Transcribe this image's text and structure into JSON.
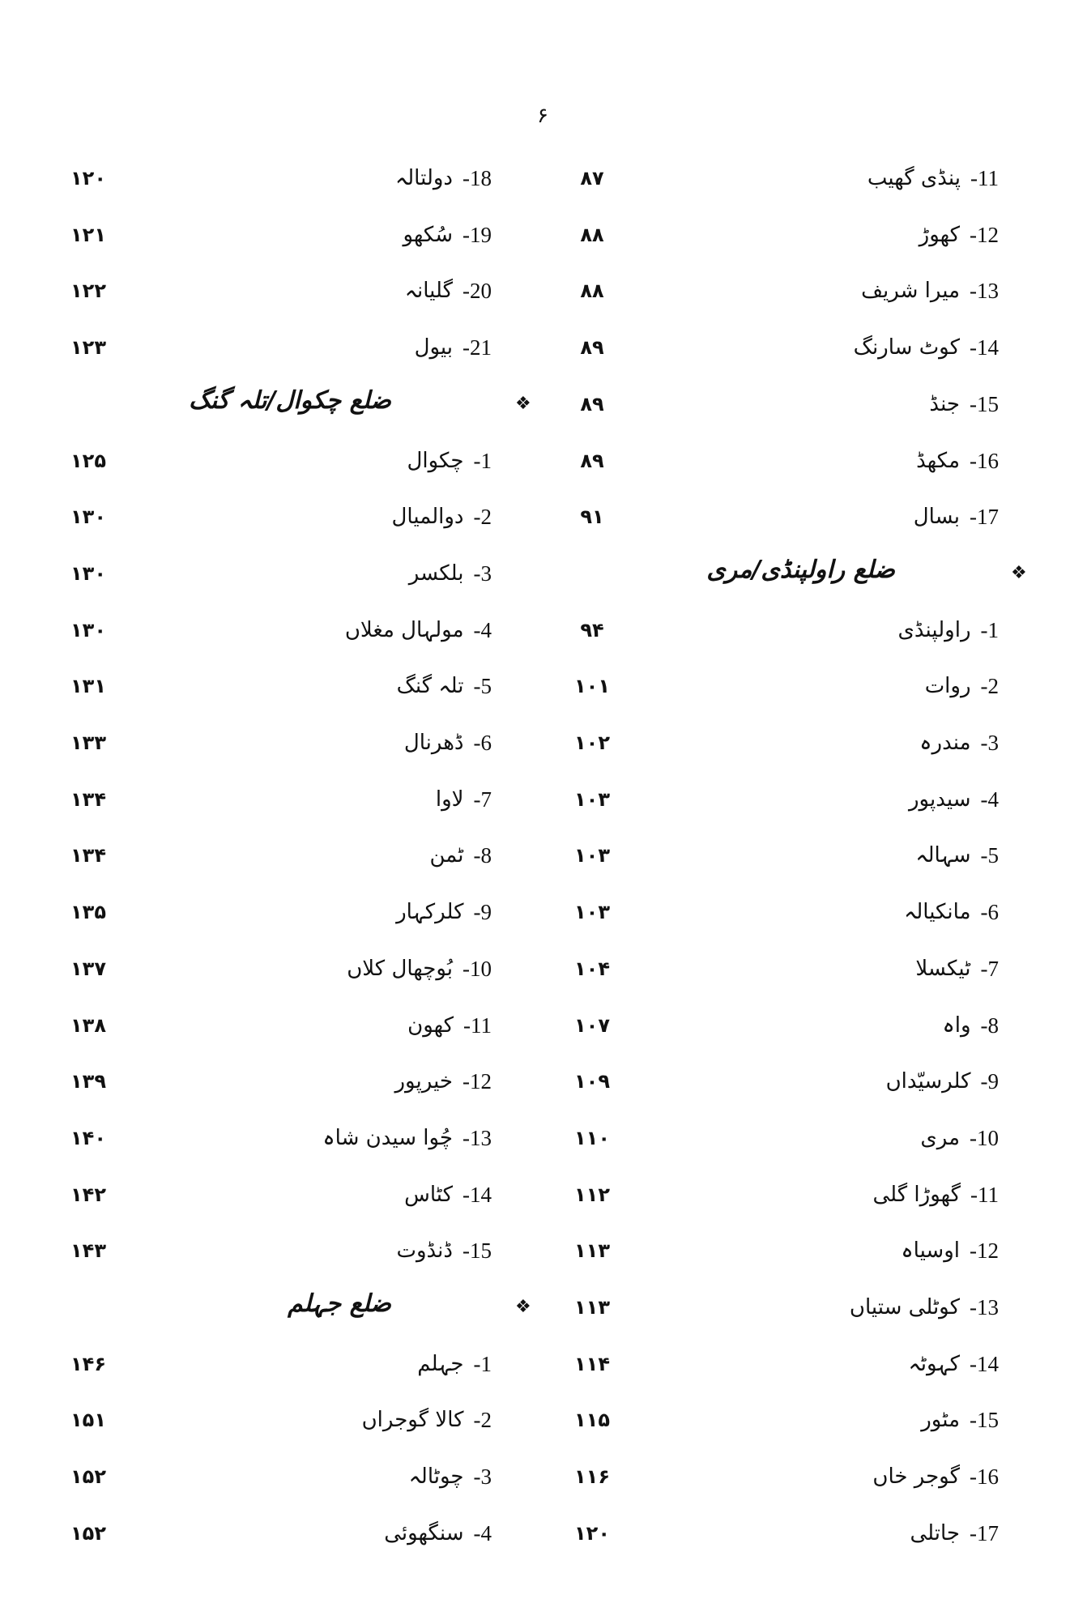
{
  "page_number": "۶",
  "right_column": [
    {
      "type": "item",
      "num": "-11",
      "name": "پنڈی گھیب",
      "page": "۸۷"
    },
    {
      "type": "item",
      "num": "-12",
      "name": "کھوڑ",
      "page": "۸۸"
    },
    {
      "type": "item",
      "num": "-13",
      "name": "میرا شریف",
      "page": "۸۸"
    },
    {
      "type": "item",
      "num": "-14",
      "name": "کوٹ سارنگ",
      "page": "۸۹"
    },
    {
      "type": "item",
      "num": "-15",
      "name": "جنڈ",
      "page": "۸۹"
    },
    {
      "type": "item",
      "num": "-16",
      "name": "مکھڈ",
      "page": "۸۹"
    },
    {
      "type": "item",
      "num": "-17",
      "name": "بسال",
      "page": "۹۱"
    },
    {
      "type": "heading",
      "name": "ضلع راولپنڈی/مری",
      "bullet": "❖"
    },
    {
      "type": "item",
      "num": "-1",
      "name": "راولپنڈی",
      "page": "۹۴"
    },
    {
      "type": "item",
      "num": "-2",
      "name": "روات",
      "page": "۱۰۱"
    },
    {
      "type": "item",
      "num": "-3",
      "name": "مندرہ",
      "page": "۱۰۲"
    },
    {
      "type": "item",
      "num": "-4",
      "name": "سیدپور",
      "page": "۱۰۳"
    },
    {
      "type": "item",
      "num": "-5",
      "name": "سہالہ",
      "page": "۱۰۳"
    },
    {
      "type": "item",
      "num": "-6",
      "name": "مانکیالہ",
      "page": "۱۰۳"
    },
    {
      "type": "item",
      "num": "-7",
      "name": "ٹیکسلا",
      "page": "۱۰۴"
    },
    {
      "type": "item",
      "num": "-8",
      "name": "واہ",
      "page": "۱۰۷"
    },
    {
      "type": "item",
      "num": "-9",
      "name": "کلرسیّداں",
      "page": "۱۰۹"
    },
    {
      "type": "item",
      "num": "-10",
      "name": "مری",
      "page": "۱۱۰"
    },
    {
      "type": "item",
      "num": "-11",
      "name": "گھوڑا گلی",
      "page": "۱۱۲"
    },
    {
      "type": "item",
      "num": "-12",
      "name": "اوسیاہ",
      "page": "۱۱۳"
    },
    {
      "type": "item",
      "num": "-13",
      "name": "کوٹلی ستیاں",
      "page": "۱۱۳"
    },
    {
      "type": "item",
      "num": "-14",
      "name": "کہوٹہ",
      "page": "۱۱۴"
    },
    {
      "type": "item",
      "num": "-15",
      "name": "مٹور",
      "page": "۱۱۵"
    },
    {
      "type": "item",
      "num": "-16",
      "name": "گوجر خاں",
      "page": "۱۱۶"
    },
    {
      "type": "item",
      "num": "-17",
      "name": "جاتلی",
      "page": "۱۲۰"
    }
  ],
  "left_column": [
    {
      "type": "item",
      "num": "-18",
      "name": "دولتالہ",
      "page": "۱۲۰"
    },
    {
      "type": "item",
      "num": "-19",
      "name": "سُکھو",
      "page": "۱۲۱"
    },
    {
      "type": "item",
      "num": "-20",
      "name": "گلیانہ",
      "page": "۱۲۲"
    },
    {
      "type": "item",
      "num": "-21",
      "name": "بیول",
      "page": "۱۲۳"
    },
    {
      "type": "heading",
      "name": "ضلع چکوال/تلہ گنگ",
      "bullet": "❖"
    },
    {
      "type": "item",
      "num": "-1",
      "name": "چکوال",
      "page": "۱۲۵"
    },
    {
      "type": "item",
      "num": "-2",
      "name": "دوالمیال",
      "page": "۱۳۰"
    },
    {
      "type": "item",
      "num": "-3",
      "name": "بلکسر",
      "page": "۱۳۰"
    },
    {
      "type": "item",
      "num": "-4",
      "name": "مولہال مغلاں",
      "page": "۱۳۰"
    },
    {
      "type": "item",
      "num": "-5",
      "name": "تلہ گنگ",
      "page": "۱۳۱"
    },
    {
      "type": "item",
      "num": "-6",
      "name": "ڈھرنال",
      "page": "۱۳۳"
    },
    {
      "type": "item",
      "num": "-7",
      "name": "لاوا",
      "page": "۱۳۴"
    },
    {
      "type": "item",
      "num": "-8",
      "name": "ٹمن",
      "page": "۱۳۴"
    },
    {
      "type": "item",
      "num": "-9",
      "name": "کلرکہار",
      "page": "۱۳۵"
    },
    {
      "type": "item",
      "num": "-10",
      "name": "بُوچھال کلاں",
      "page": "۱۳۷"
    },
    {
      "type": "item",
      "num": "-11",
      "name": "کھون",
      "page": "۱۳۸"
    },
    {
      "type": "item",
      "num": "-12",
      "name": "خیرپور",
      "page": "۱۳۹"
    },
    {
      "type": "item",
      "num": "-13",
      "name": "چُوا سیدن شاہ",
      "page": "۱۴۰"
    },
    {
      "type": "item",
      "num": "-14",
      "name": "کٹاس",
      "page": "۱۴۲"
    },
    {
      "type": "item",
      "num": "-15",
      "name": "ڈنڈوت",
      "page": "۱۴۳"
    },
    {
      "type": "heading",
      "name": "ضلع جہلم",
      "bullet": "❖"
    },
    {
      "type": "item",
      "num": "-1",
      "name": "جہلم",
      "page": "۱۴۶"
    },
    {
      "type": "item",
      "num": "-2",
      "name": "کالا گوجراں",
      "page": "۱۵۱"
    },
    {
      "type": "item",
      "num": "-3",
      "name": "چوٹالہ",
      "page": "۱۵۲"
    },
    {
      "type": "item",
      "num": "-4",
      "name": "سنگھوئی",
      "page": "۱۵۲"
    }
  ]
}
